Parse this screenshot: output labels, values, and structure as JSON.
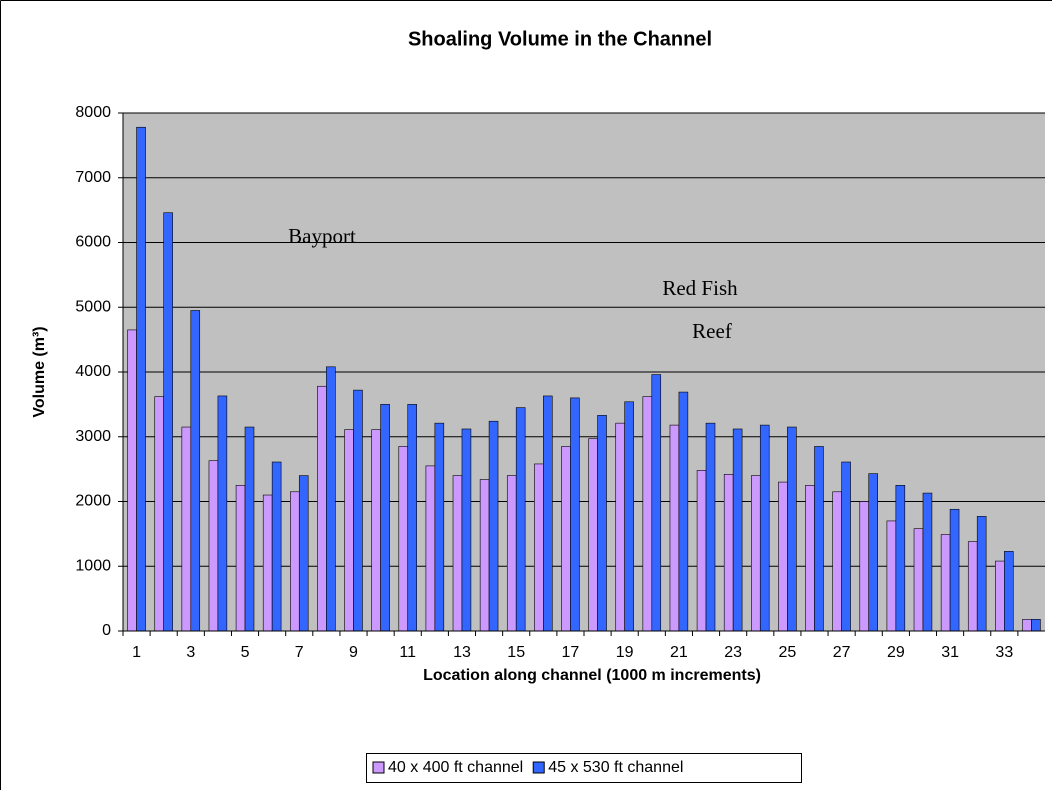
{
  "chart_data": {
    "type": "bar",
    "title": "Shoaling Volume in the Channel",
    "xlabel": "Location along channel (1000 m increments)",
    "ylabel": "Volume (m³)",
    "categories": [
      "1",
      null,
      "3",
      null,
      "5",
      null,
      "7",
      null,
      "9",
      null,
      "11",
      null,
      "13",
      null,
      "15",
      null,
      "17",
      null,
      "19",
      null,
      "21",
      null,
      "23",
      null,
      "25",
      null,
      "27",
      null,
      "29",
      null,
      "31",
      null,
      "33",
      null
    ],
    "series": [
      {
        "name": "40 x 400 ft channel",
        "color": "#cc99ff",
        "values": [
          4650,
          3620,
          3150,
          2630,
          2250,
          2100,
          2150,
          3780,
          3110,
          3110,
          2850,
          2550,
          2400,
          2340,
          2400,
          2580,
          2850,
          2970,
          3210,
          3620,
          3180,
          2480,
          2420,
          2400,
          2300,
          2250,
          2150,
          2000,
          1700,
          1580,
          1490,
          1380,
          1080,
          180
        ]
      },
      {
        "name": "45 x 530 ft channel",
        "color": "#3366ff",
        "values": [
          7780,
          6460,
          4950,
          3630,
          3150,
          2610,
          2400,
          4080,
          3720,
          3500,
          3500,
          3210,
          3120,
          3240,
          3450,
          3630,
          3600,
          3330,
          3540,
          3960,
          3690,
          3210,
          3120,
          3180,
          3150,
          2850,
          2610,
          2430,
          2250,
          2130,
          1880,
          1770,
          1230,
          180
        ]
      }
    ],
    "ylim": [
      0,
      8000
    ],
    "yticks": [
      0,
      1000,
      2000,
      3000,
      4000,
      5000,
      6000,
      7000,
      8000
    ],
    "grid": true,
    "legend": "bottom",
    "annotations": [
      "Bayport",
      "Red Fish",
      "Reef"
    ]
  }
}
